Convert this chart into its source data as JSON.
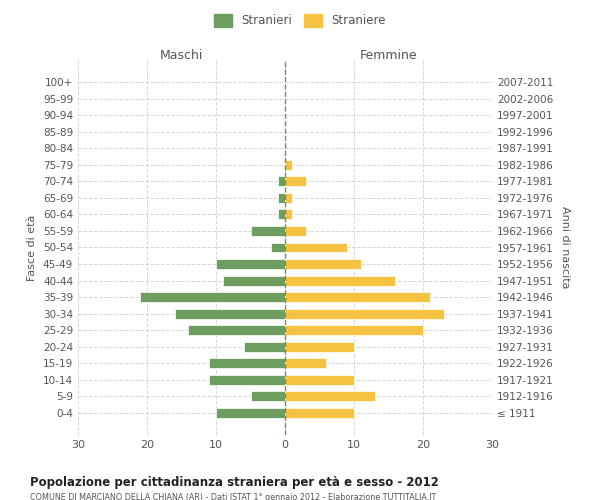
{
  "age_groups": [
    "100+",
    "95-99",
    "90-94",
    "85-89",
    "80-84",
    "75-79",
    "70-74",
    "65-69",
    "60-64",
    "55-59",
    "50-54",
    "45-49",
    "40-44",
    "35-39",
    "30-34",
    "25-29",
    "20-24",
    "15-19",
    "10-14",
    "5-9",
    "0-4"
  ],
  "birth_years": [
    "≤ 1911",
    "1912-1916",
    "1917-1921",
    "1922-1926",
    "1927-1931",
    "1932-1936",
    "1937-1941",
    "1942-1946",
    "1947-1951",
    "1952-1956",
    "1957-1961",
    "1962-1966",
    "1967-1971",
    "1972-1976",
    "1977-1981",
    "1982-1986",
    "1987-1991",
    "1992-1996",
    "1997-2001",
    "2002-2006",
    "2007-2011"
  ],
  "males": [
    0,
    0,
    0,
    0,
    0,
    0,
    1,
    1,
    1,
    5,
    2,
    10,
    9,
    21,
    16,
    14,
    6,
    11,
    11,
    5,
    10
  ],
  "females": [
    0,
    0,
    0,
    0,
    0,
    1,
    3,
    1,
    1,
    3,
    9,
    11,
    16,
    21,
    23,
    20,
    10,
    6,
    10,
    13,
    10
  ],
  "male_color": "#6e9e5f",
  "female_color": "#f5c242",
  "grid_color": "#cccccc",
  "center_line_color": "#888855",
  "background_color": "#ffffff",
  "title": "Popolazione per cittadinanza straniera per età e sesso - 2012",
  "subtitle": "COMUNE DI MARCIANO DELLA CHIANA (AR) - Dati ISTAT 1° gennaio 2012 - Elaborazione TUTTITALIA.IT",
  "ylabel_left": "Fasce di età",
  "ylabel_right": "Anni di nascita",
  "xlabel_left": "Maschi",
  "xlabel_right": "Femmine",
  "legend_male": "Stranieri",
  "legend_female": "Straniere",
  "xlim": [
    -30,
    30
  ],
  "xticks": [
    -30,
    -20,
    -10,
    0,
    10,
    20,
    30
  ],
  "xticklabels": [
    "30",
    "20",
    "10",
    "0",
    "10",
    "20",
    "30"
  ]
}
